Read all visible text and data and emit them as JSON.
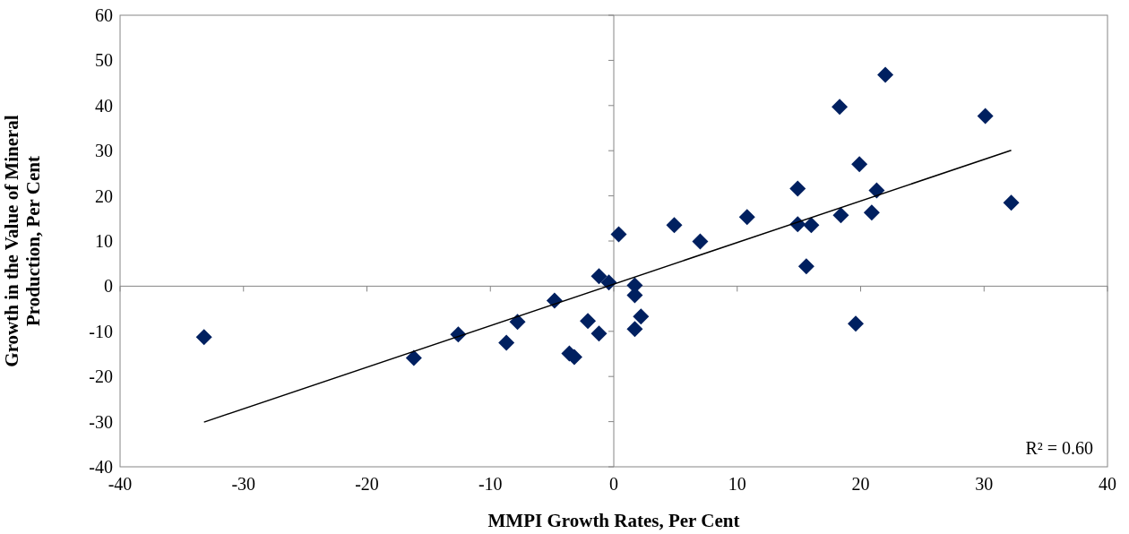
{
  "chart_data": {
    "type": "scatter",
    "xlabel": "MMPI Growth Rates, Per Cent",
    "ylabel": "Growth in the Value of Mineral\nProduction, Per Cent",
    "xlim": [
      -40,
      40
    ],
    "ylim": [
      -40,
      60
    ],
    "xticks": [
      -40,
      -30,
      -20,
      -10,
      0,
      10,
      20,
      30,
      40
    ],
    "yticks": [
      -40,
      -30,
      -20,
      -10,
      0,
      10,
      20,
      30,
      40,
      50,
      60
    ],
    "marker": "diamond",
    "annotations": [
      "R² = 0.60"
    ],
    "series": [
      {
        "color": "#002060",
        "x": [
          -33.2,
          -16.2,
          -12.6,
          -8.7,
          -7.8,
          -4.8,
          -2.1,
          -3.6,
          -3.2,
          -1.2,
          -1.2,
          -0.4,
          0.4,
          1.7,
          1.7,
          1.7,
          2.2,
          4.9,
          7.0,
          10.8,
          14.9,
          14.9,
          16.0,
          15.6,
          18.3,
          18.4,
          19.6,
          19.9,
          20.9,
          21.3,
          22.0,
          30.1,
          32.2
        ],
        "values": [
          -11.3,
          -15.9,
          -10.7,
          -12.5,
          -7.9,
          -3.2,
          -7.7,
          -14.9,
          -15.7,
          -10.5,
          2.2,
          0.8,
          11.5,
          0.2,
          -2.0,
          -9.5,
          -6.7,
          13.5,
          9.9,
          15.3,
          21.6,
          13.7,
          13.5,
          4.4,
          39.7,
          15.7,
          -8.3,
          27.0,
          16.3,
          21.2,
          46.8,
          37.7,
          18.5
        ]
      },
      {
        "type": "line",
        "color": "#000000",
        "marker": "none",
        "x": [
          -33.2,
          32.2
        ],
        "values": [
          -30.1,
          30.1
        ]
      }
    ]
  }
}
